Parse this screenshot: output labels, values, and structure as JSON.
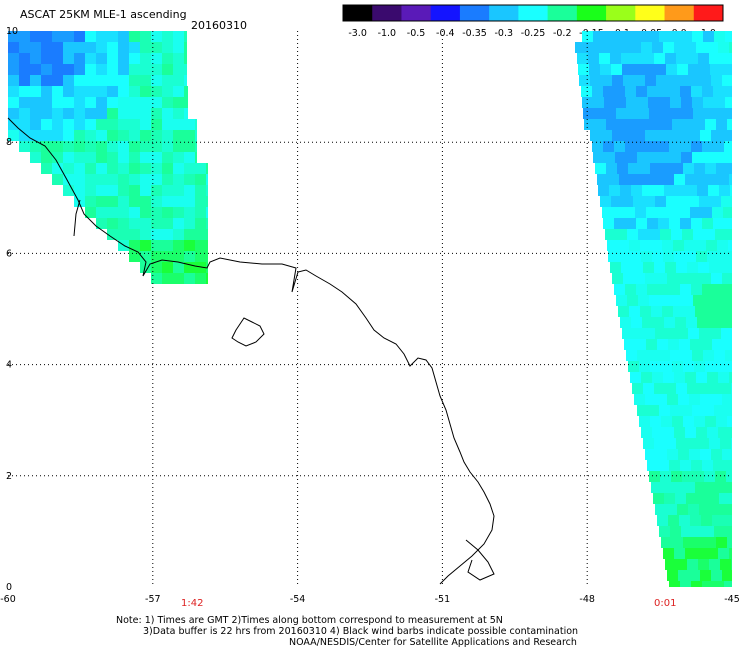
{
  "header": {
    "title": "ASCAT 25KM MLE-1 ascending",
    "date": "20160310"
  },
  "colorbar": {
    "labels": [
      "-3.0",
      "-1.0",
      "-0.5",
      "-0.4",
      "-0.35",
      "-0.3",
      "-0.25",
      "-0.2",
      "-0.15",
      "-0.1",
      "-0.05",
      "0.0",
      "1.0"
    ],
    "colors": [
      "#000000",
      "#3a0a6e",
      "#5a1ab8",
      "#1414ff",
      "#1a7cff",
      "#1ac6ff",
      "#1affff",
      "#1aff9a",
      "#1aff1a",
      "#9aff1a",
      "#ffff1a",
      "#ff9a1a",
      "#ff1a1a"
    ]
  },
  "map": {
    "lon_labels": [
      "-60",
      "-57",
      "-54",
      "-51",
      "-48",
      "-45"
    ],
    "lat_labels": [
      "0",
      "2",
      "4",
      "6",
      "8",
      "10"
    ],
    "pass_times": [
      "1:42",
      "0:01"
    ]
  },
  "footer": {
    "note_line1": "Note: 1) Times are GMT 2)Times along bottom correspond to measurement at 5N",
    "note_line2": "3)Data buffer is 22 hrs from 20160310 4) Black wind barbs indicate possible contamination",
    "credit": "NOAA/NESDIS/Center for Satellite Applications and Research"
  }
}
